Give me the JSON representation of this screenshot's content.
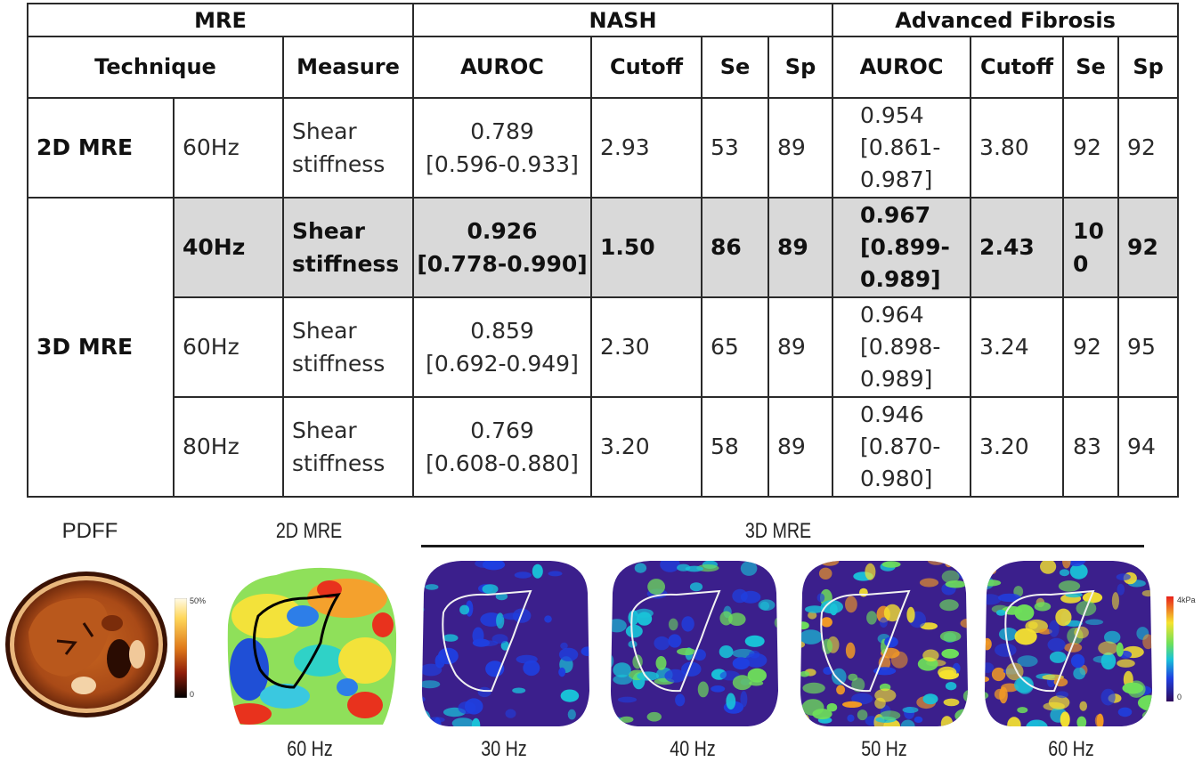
{
  "table": {
    "group_headers": {
      "mre": "MRE",
      "nash": "NASH",
      "fibrosis": "Advanced Fibrosis"
    },
    "column_headers": {
      "technique": "Technique",
      "measure": "Measure",
      "nash_auroc": "AUROC",
      "nash_cutoff": "Cutoff",
      "nash_se": "Se",
      "nash_sp": "Sp",
      "fib_auroc": "AUROC",
      "fib_cutoff": "Cutoff",
      "fib_se": "Se",
      "fib_sp": "Sp"
    },
    "techniques": {
      "mre2d": "2D MRE",
      "mre3d": "3D MRE"
    },
    "rows": [
      {
        "freq": "60Hz",
        "measure": [
          "Shear",
          "stiffness"
        ],
        "nash_auroc": [
          "0.789",
          "[0.596-0.933]"
        ],
        "nash_cutoff": "2.93",
        "nash_se": "53",
        "nash_sp": "89",
        "fib_auroc": [
          "0.954",
          "[0.861-",
          "0.987]"
        ],
        "fib_cutoff": "3.80",
        "fib_se": [
          "92"
        ],
        "fib_sp": "92",
        "highlight": false
      },
      {
        "freq": "40Hz",
        "measure": [
          "Shear",
          "stiffness"
        ],
        "nash_auroc": [
          "0.926",
          "[0.778-0.990]"
        ],
        "nash_cutoff": "1.50",
        "nash_se": "86",
        "nash_sp": "89",
        "fib_auroc": [
          "0.967",
          "[0.899-",
          "0.989]"
        ],
        "fib_cutoff": "2.43",
        "fib_se": [
          "10",
          "0"
        ],
        "fib_sp": "92",
        "highlight": true
      },
      {
        "freq": "60Hz",
        "measure": [
          "Shear",
          "stiffness"
        ],
        "nash_auroc": [
          "0.859",
          "[0.692-0.949]"
        ],
        "nash_cutoff": "2.30",
        "nash_se": "65",
        "nash_sp": "89",
        "fib_auroc": [
          "0.964",
          "[0.898-",
          "0.989]"
        ],
        "fib_cutoff": "3.24",
        "fib_se": [
          "92"
        ],
        "fib_sp": "95",
        "highlight": false
      },
      {
        "freq": "80Hz",
        "measure": [
          "Shear",
          "stiffness"
        ],
        "nash_auroc": [
          "0.769",
          "[0.608-0.880]"
        ],
        "nash_cutoff": "3.20",
        "nash_se": "58",
        "nash_sp": "89",
        "fib_auroc": [
          "0.946",
          "[0.870-",
          "0.980]"
        ],
        "fib_cutoff": "3.20",
        "fib_se": [
          "83"
        ],
        "fib_sp": "94",
        "highlight": false
      }
    ]
  },
  "figure": {
    "top_labels": {
      "pdff": "PDFF",
      "mre2d": "2D MRE",
      "mre3d": "3D MRE"
    },
    "bottom_labels": {
      "mre2d_freq": "60 Hz",
      "f30": "30 Hz",
      "f40": "40 Hz",
      "f50": "50 Hz",
      "f60": "60 Hz"
    },
    "pdff_colorbar": {
      "max": "50%",
      "min": "0"
    },
    "mre_colorbar": {
      "max": "4kPa",
      "min": "0"
    },
    "colors": {
      "purple_bg": "#3b1f8c",
      "pdff_tissue": "#b4561e"
    }
  }
}
